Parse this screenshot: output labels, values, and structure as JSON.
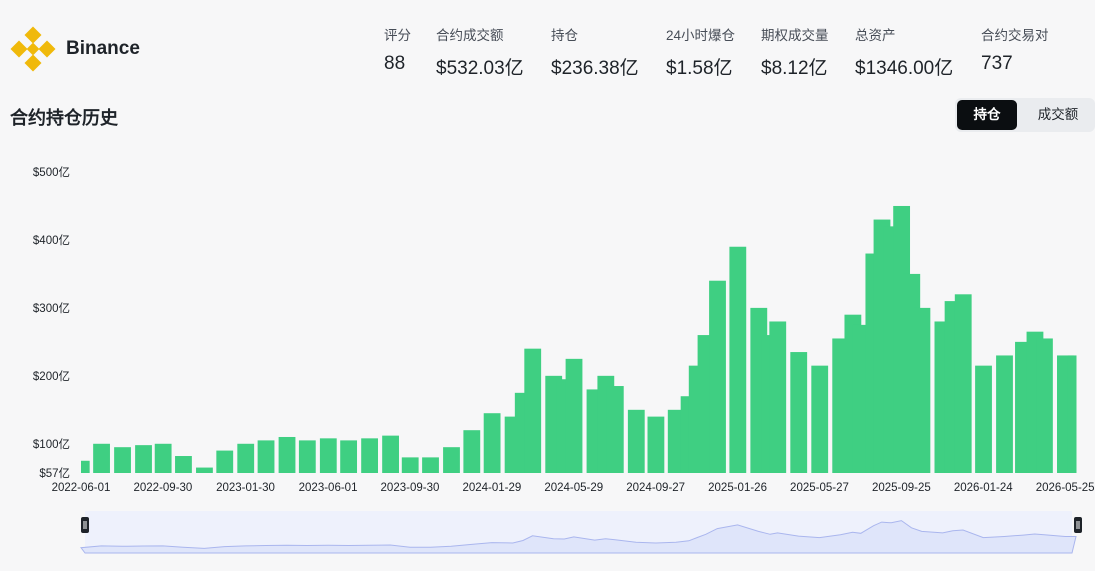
{
  "exchange": {
    "name": "Binance",
    "logo_color": "#f0b90b"
  },
  "stats": [
    {
      "label": "评分",
      "value": "88"
    },
    {
      "label": "合约成交额",
      "value": "$532.03亿"
    },
    {
      "label": "持仓",
      "value": "$236.38亿"
    },
    {
      "label": "24小时爆仓",
      "value": "$1.58亿"
    },
    {
      "label": "期权成交量",
      "value": "$8.12亿"
    },
    {
      "label": "总资产",
      "value": "$1346.00亿"
    },
    {
      "label": "合约交易对",
      "value": "737"
    }
  ],
  "section_title": "合约持仓历史",
  "tabs": {
    "active": "持仓",
    "inactive": "成交额"
  },
  "colors": {
    "bar": "#3fcf82",
    "navigator_fill": "#dfe5fa",
    "navigator_line": "#aab6ee"
  },
  "chart_data": {
    "type": "bar",
    "ylabel": "",
    "xlabel": "",
    "ylim": [
      57,
      500
    ],
    "y_ticks": [
      "$57亿",
      "$100亿",
      "$200亿",
      "$300亿",
      "$400亿",
      "$500亿"
    ],
    "y_tick_values": [
      57,
      100,
      200,
      300,
      400,
      500
    ],
    "x_ticks": [
      "2022-06-01",
      "2022-09-30",
      "2023-01-30",
      "2023-06-01",
      "2023-09-30",
      "2024-01-29",
      "2024-05-29",
      "2024-09-27",
      "2025-01-26",
      "2025-05-27",
      "2025-09-25",
      "2026-01-24",
      "2026-05-25"
    ],
    "x": [
      "2022-06-01",
      "2022-07-01",
      "2022-08-01",
      "2022-09-01",
      "2022-09-30",
      "2022-10-30",
      "2022-11-30",
      "2022-12-30",
      "2023-01-30",
      "2023-03-01",
      "2023-04-01",
      "2023-05-01",
      "2023-06-01",
      "2023-07-01",
      "2023-08-01",
      "2023-09-01",
      "2023-09-30",
      "2023-10-30",
      "2023-11-30",
      "2023-12-30",
      "2024-01-29",
      "2024-02-29",
      "2024-03-15",
      "2024-03-29",
      "2024-04-29",
      "2024-05-15",
      "2024-05-29",
      "2024-06-29",
      "2024-07-15",
      "2024-07-29",
      "2024-08-29",
      "2024-09-27",
      "2024-10-27",
      "2024-11-15",
      "2024-11-27",
      "2024-12-10",
      "2024-12-27",
      "2025-01-26",
      "2025-02-26",
      "2025-03-15",
      "2025-03-26",
      "2025-04-26",
      "2025-05-27",
      "2025-06-27",
      "2025-07-15",
      "2025-07-27",
      "2025-08-15",
      "2025-08-27",
      "2025-09-10",
      "2025-09-25",
      "2025-10-10",
      "2025-10-25",
      "2025-11-25",
      "2025-12-10",
      "2025-12-25",
      "2026-01-24",
      "2026-02-24",
      "2026-03-24",
      "2026-04-10",
      "2026-04-24",
      "2026-05-25",
      "2026-06-10"
    ],
    "values": [
      75,
      100,
      95,
      98,
      100,
      82,
      65,
      90,
      100,
      105,
      110,
      105,
      108,
      105,
      108,
      112,
      80,
      80,
      95,
      120,
      145,
      140,
      175,
      240,
      200,
      195,
      225,
      180,
      200,
      185,
      150,
      140,
      150,
      170,
      215,
      260,
      340,
      390,
      300,
      260,
      280,
      235,
      215,
      255,
      290,
      275,
      380,
      430,
      420,
      450,
      350,
      300,
      280,
      310,
      320,
      215,
      230,
      250,
      265,
      255,
      230,
      230
    ]
  }
}
